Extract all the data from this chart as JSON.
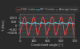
{
  "xlabel": "Crankshaft angle [°]",
  "ylabel": "T [Nm]",
  "legend_labels": [
    "V 60° motor",
    "90° V motor",
    "Average torque"
  ],
  "legend_colors": [
    "#ff4444",
    "#44ccee",
    "#aaaaaa"
  ],
  "legend_styles": [
    "-",
    "-",
    "--"
  ],
  "x_min": 0,
  "x_max": 720,
  "y_min": -1500,
  "y_max": 1500,
  "y_ticks": [
    -1000,
    -500,
    0,
    500,
    1000
  ],
  "x_ticks": [
    0,
    180,
    360,
    540,
    720
  ],
  "average_torque": 300,
  "bg_color": "#2a2a2a",
  "plot_bg_color": "#3a3a3a",
  "grid_color": "#555555",
  "text_color": "#cccccc",
  "spine_color": "#888888"
}
